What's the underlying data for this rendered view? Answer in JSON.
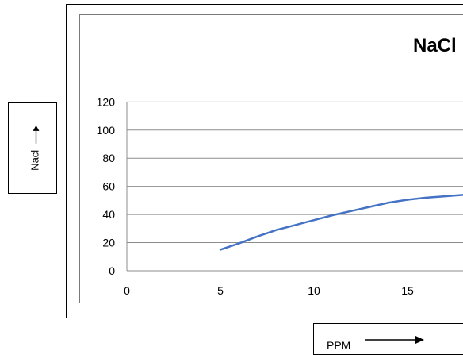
{
  "chart_data": {
    "type": "line",
    "title": "NaCl",
    "xlabel": "PPM",
    "ylabel": "Nacl",
    "xlim": [
      0,
      20
    ],
    "ylim": [
      0,
      120
    ],
    "x_ticks": [
      0,
      5,
      10,
      15
    ],
    "y_ticks": [
      0,
      20,
      40,
      60,
      80,
      100,
      120
    ],
    "grid": "horizontal",
    "series": [
      {
        "color": "#4472c4",
        "x": [
          5,
          6,
          7,
          8,
          9,
          10,
          11,
          12,
          13,
          14,
          15,
          16,
          17,
          18
        ],
        "y": [
          15,
          19.5,
          24.5,
          29,
          32.5,
          36,
          39.5,
          42.5,
          45.5,
          48.5,
          50.5,
          52,
          53,
          54
        ]
      }
    ]
  }
}
